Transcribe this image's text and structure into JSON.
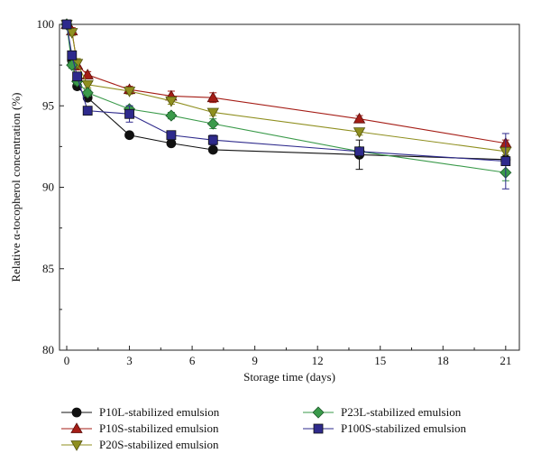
{
  "chart_data": {
    "type": "line",
    "title": "",
    "xlabel": "Storage time (days)",
    "ylabel": "Relative α-tocopherol concentration (%)",
    "xlim": [
      0,
      22
    ],
    "ylim": [
      80,
      100
    ],
    "xticks": [
      0,
      3,
      6,
      9,
      12,
      15,
      18,
      21
    ],
    "yticks": [
      80,
      85,
      90,
      95,
      100
    ],
    "grid": false,
    "legend_position": "bottom",
    "series": [
      {
        "name": "P10L-stabilized emulsion",
        "color": "#111111",
        "marker": "circle",
        "x": [
          0,
          0.25,
          0.5,
          1,
          3,
          5,
          7,
          14,
          21
        ],
        "y": [
          100,
          97.8,
          96.2,
          95.5,
          93.2,
          92.7,
          92.3,
          92.0,
          91.7
        ],
        "err": [
          0,
          0.2,
          0.2,
          0.2,
          0.1,
          0.1,
          0.15,
          0.9,
          0.2
        ]
      },
      {
        "name": "P10S-stabilized emulsion",
        "color": "#a51d16",
        "marker": "triangle-up",
        "x": [
          0,
          0.25,
          0.5,
          1,
          3,
          5,
          7,
          14,
          21
        ],
        "y": [
          100,
          99.6,
          97.5,
          96.9,
          96.0,
          95.6,
          95.5,
          94.2,
          92.7
        ],
        "err": [
          0,
          0.2,
          0.3,
          0.2,
          0.2,
          0.3,
          0.3,
          0.2,
          0.2
        ]
      },
      {
        "name": "P20S-stabilized emulsion",
        "color": "#8f8f1f",
        "marker": "triangle-down",
        "x": [
          0,
          0.25,
          0.5,
          1,
          3,
          5,
          7,
          14,
          21
        ],
        "y": [
          100,
          99.5,
          97.6,
          96.3,
          95.9,
          95.3,
          94.6,
          93.4,
          92.2
        ],
        "err": [
          0,
          0.2,
          0.3,
          0.2,
          0.2,
          0.2,
          0.2,
          0.2,
          0.2
        ]
      },
      {
        "name": "P23L-stabilized emulsion",
        "color": "#3a9a4a",
        "marker": "diamond",
        "x": [
          0,
          0.25,
          0.5,
          1,
          3,
          5,
          7,
          14,
          21
        ],
        "y": [
          100,
          97.5,
          96.5,
          95.8,
          94.8,
          94.4,
          93.9,
          92.2,
          90.9
        ],
        "err": [
          0,
          0.2,
          0.2,
          0.2,
          0.2,
          0.2,
          0.3,
          0.2,
          0.5
        ]
      },
      {
        "name": "P100S-stabilized emulsion",
        "color": "#2e2a8c",
        "marker": "square",
        "x": [
          0,
          0.25,
          0.5,
          1,
          3,
          5,
          7,
          14,
          21
        ],
        "y": [
          100,
          98.1,
          96.8,
          94.7,
          94.5,
          93.2,
          92.9,
          92.2,
          91.6
        ],
        "err": [
          0,
          0.2,
          0.2,
          0.2,
          0.5,
          0.2,
          0.3,
          0.2,
          1.7
        ]
      }
    ]
  }
}
